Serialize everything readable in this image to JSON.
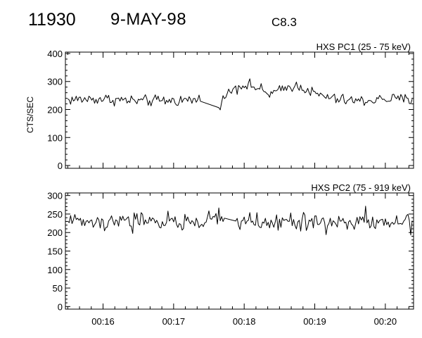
{
  "header": {
    "event_id": "11930",
    "date": "9-MAY-98",
    "flare_class": "C8.3"
  },
  "chart_data": [
    {
      "type": "line",
      "title": "HXS PC1 (25 - 75 keV)",
      "ylabel": "CTS/SEC",
      "xlabel": "",
      "x_ticks": [
        "00:16",
        "00:17",
        "00:18",
        "00:19",
        "00:20"
      ],
      "xlim": [
        "00:15:28",
        "00:20:24"
      ],
      "ylim": [
        -10,
        405
      ],
      "y_ticks": [
        0,
        100,
        200,
        300,
        400
      ],
      "grid": false,
      "series": [
        {
          "x": [
            "00:15:30",
            "00:16:00",
            "00:16:30",
            "00:17:00",
            "00:17:20",
            "00:17:40",
            "00:17:50",
            "00:18:00",
            "00:18:10",
            "00:18:20",
            "00:18:30",
            "00:18:40",
            "00:18:50",
            "00:19:00",
            "00:19:20",
            "00:19:40",
            "00:20:00",
            "00:20:24"
          ],
          "values": [
            235,
            238,
            230,
            232,
            235,
            225,
            275,
            290,
            280,
            255,
            265,
            285,
            280,
            255,
            235,
            230,
            238,
            235
          ]
        }
      ]
    },
    {
      "type": "line",
      "title": "HXS PC2 (75 - 919 keV)",
      "ylabel": "",
      "xlabel": "",
      "x_ticks": [
        "00:16",
        "00:17",
        "00:18",
        "00:19",
        "00:20"
      ],
      "xlim": [
        "00:15:28",
        "00:20:24"
      ],
      "ylim": [
        -7,
        307
      ],
      "y_ticks": [
        0,
        50,
        100,
        150,
        200,
        250,
        300
      ],
      "grid": false,
      "series": [
        {
          "x": [
            "00:15:30",
            "00:16:00",
            "00:16:30",
            "00:17:00",
            "00:17:30",
            "00:18:00",
            "00:18:30",
            "00:19:00",
            "00:19:30",
            "00:20:00",
            "00:20:24"
          ],
          "values": [
            228,
            232,
            230,
            228,
            232,
            230,
            228,
            230,
            228,
            230,
            232
          ]
        }
      ]
    }
  ]
}
